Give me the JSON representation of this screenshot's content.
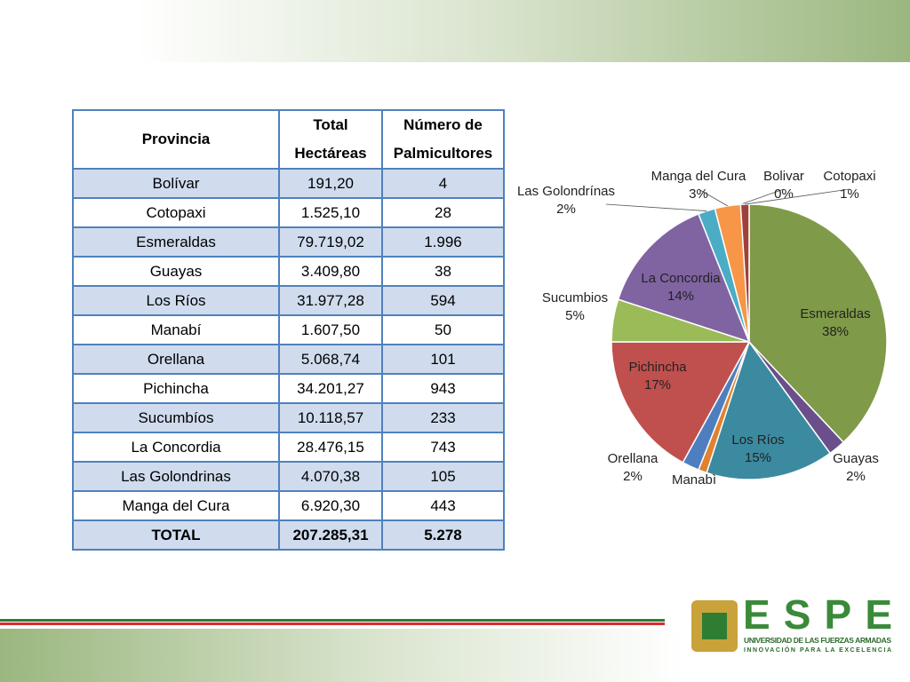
{
  "table": {
    "header": [
      "Provincia",
      "Total Hectáreas",
      "Número de Palmicultores"
    ],
    "rows": [
      [
        "Bolívar",
        "191,20",
        "4"
      ],
      [
        "Cotopaxi",
        "1.525,10",
        "28"
      ],
      [
        "Esmeraldas",
        "79.719,02",
        "1.996"
      ],
      [
        "Guayas",
        "3.409,80",
        "38"
      ],
      [
        "Los Ríos",
        "31.977,28",
        "594"
      ],
      [
        "Manabí",
        "1.607,50",
        "50"
      ],
      [
        "Orellana",
        "5.068,74",
        "101"
      ],
      [
        "Pichincha",
        "34.201,27",
        "943"
      ],
      [
        "Sucumbíos",
        "10.118,57",
        "233"
      ],
      [
        "La Concordia",
        "28.476,15",
        "743"
      ],
      [
        "Las Golondrinas",
        "4.070,38",
        "105"
      ],
      [
        "Manga del Cura",
        "6.920,30",
        "443"
      ],
      [
        "TOTAL",
        "207.285,31",
        "5.278"
      ]
    ]
  },
  "chart_data": {
    "type": "pie",
    "categories": [
      "Esmeraldas",
      "Guayas",
      "Los Ríos",
      "Manabì",
      "Orellana",
      "Pichincha",
      "Sucumbios",
      "La Concordia",
      "Las Golondrínas",
      "Manga del Cura",
      "Bolivar",
      "Cotopaxi"
    ],
    "values": [
      38,
      2,
      15,
      1,
      2,
      17,
      5,
      14,
      2,
      3,
      0,
      1
    ],
    "value_labels": [
      "38%",
      "2%",
      "15%",
      null,
      "2%",
      "17%",
      "5%",
      "14%",
      "2%",
      "3%",
      "0%",
      "1%"
    ],
    "colors": [
      "#7f9a48",
      "#6a4f8a",
      "#3b8aa0",
      "#e0822f",
      "#4f7ec0",
      "#c0504d",
      "#9bbb59",
      "#8064a2",
      "#4bacc6",
      "#f79646",
      "#5b7db0",
      "#a0403d"
    ]
  },
  "logo": {
    "name": "ESPE",
    "line1": "UNIVERSIDAD DE LAS FUERZAS ARMADAS",
    "line2": "INNOVACIÓN PARA LA EXCELENCIA"
  }
}
